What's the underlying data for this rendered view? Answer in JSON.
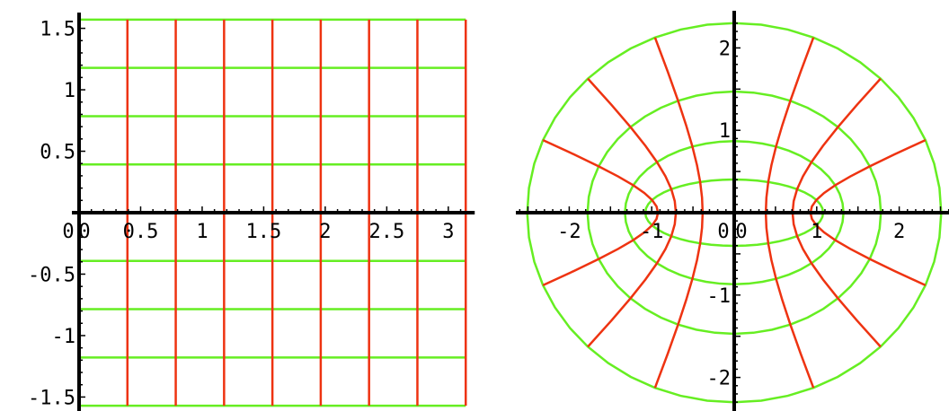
{
  "colors": {
    "axis": "#000000",
    "horizontal_lines": "#66ee22",
    "vertical_lines": "#ee3311",
    "background": "#ffffff"
  },
  "chart_data": [
    {
      "type": "line",
      "panel": "left",
      "title": "",
      "xlabel": "",
      "ylabel": "",
      "xlim": [
        0,
        3.1416
      ],
      "ylim": [
        -1.5708,
        1.5708
      ],
      "grid": false,
      "x_ticks": [
        {
          "value": 0,
          "label": "0"
        },
        {
          "value": 0.5,
          "label": "0.5"
        },
        {
          "value": 1,
          "label": "1"
        },
        {
          "value": 1.5,
          "label": "1.5"
        },
        {
          "value": 2,
          "label": "2"
        },
        {
          "value": 2.5,
          "label": "2.5"
        },
        {
          "value": 3,
          "label": "3"
        }
      ],
      "y_ticks": [
        {
          "value": 1.5,
          "label": "1.5"
        },
        {
          "value": 1,
          "label": "1"
        },
        {
          "value": 0.5,
          "label": "0.5"
        },
        {
          "value": -0.5,
          "label": "-0.5"
        },
        {
          "value": -1,
          "label": "-1"
        },
        {
          "value": -1.5,
          "label": "-1.5"
        }
      ],
      "origin_label": "0",
      "horizontal_lines_y": [
        -1.5708,
        -1.1781,
        -0.7854,
        -0.3927,
        0.3927,
        0.7854,
        1.1781,
        1.5708
      ],
      "vertical_lines_x": [
        0.3927,
        0.7854,
        1.1781,
        1.5708,
        1.9635,
        2.3562,
        2.7489,
        3.1416
      ]
    },
    {
      "type": "line",
      "panel": "right",
      "title": "",
      "xlabel": "",
      "ylabel": "",
      "xlim": [
        -2.6,
        2.6
      ],
      "ylim": [
        -2.4,
        2.4
      ],
      "grid": false,
      "x_ticks": [
        {
          "value": -2,
          "label": "-2"
        },
        {
          "value": -1,
          "label": "-1"
        },
        {
          "value": 1,
          "label": "1"
        },
        {
          "value": 2,
          "label": "2"
        }
      ],
      "y_ticks": [
        {
          "value": 2,
          "label": "2"
        },
        {
          "value": 1,
          "label": "1"
        },
        {
          "value": -1,
          "label": "-1"
        },
        {
          "value": -2,
          "label": "-2"
        }
      ],
      "origin_label": "0",
      "ellipses_param_s": [
        0.3927,
        0.7854,
        1.1781,
        1.5708
      ],
      "hyperbolas_param_t": [
        0.3927,
        0.7854,
        1.1781,
        1.5708,
        1.9635,
        2.3562,
        2.7489
      ],
      "s_max": 1.5708
    }
  ]
}
